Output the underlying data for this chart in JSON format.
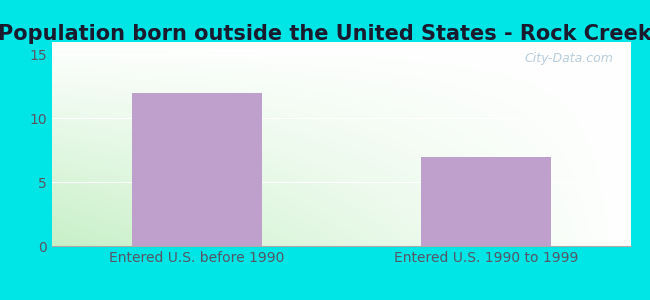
{
  "title": "Population born outside the United States - Rock Creek",
  "categories": [
    "Entered U.S. before 1990",
    "Entered U.S. 1990 to 1999"
  ],
  "values": [
    12,
    7
  ],
  "bar_color": "#bf9fcc",
  "ylim": [
    0,
    16
  ],
  "yticks": [
    0,
    5,
    10,
    15
  ],
  "background_outer": "#00e5e5",
  "background_inner_topleft": "#c8eec8",
  "background_inner_bottomright": "#ffffff",
  "watermark": "City-Data.com",
  "title_fontsize": 15,
  "tick_fontsize": 10,
  "label_fontsize": 10,
  "title_color": "#1a1a2e",
  "tick_color": "#555566"
}
